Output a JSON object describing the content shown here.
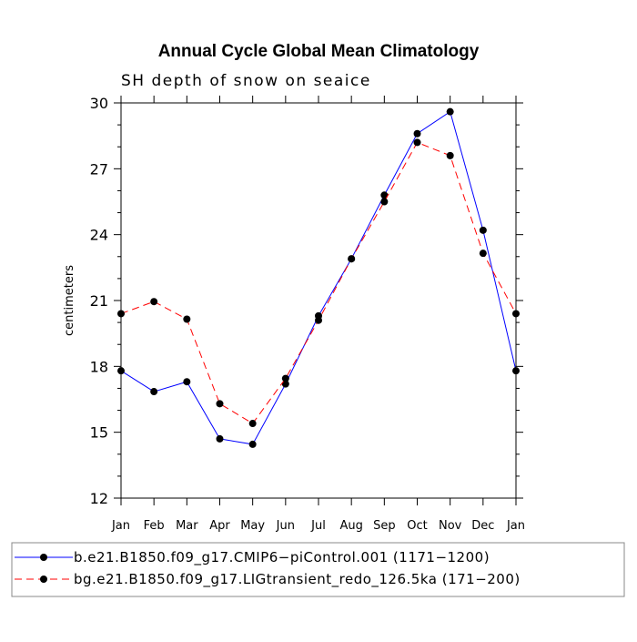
{
  "chart_data": {
    "type": "line",
    "title": "Annual Cycle Global Mean Climatology",
    "subtitle": "SH depth of snow on seaice",
    "xlabel": "",
    "ylabel": "centimeters",
    "categories": [
      "Jan",
      "Feb",
      "Mar",
      "Apr",
      "May",
      "Jun",
      "Jul",
      "Aug",
      "Sep",
      "Oct",
      "Nov",
      "Dec",
      "Jan"
    ],
    "ylim": [
      12,
      30
    ],
    "yticks": [
      12,
      15,
      18,
      21,
      24,
      27,
      30
    ],
    "yticks_labels": [
      "12",
      "15",
      "18",
      "21",
      "24",
      "27",
      "30"
    ],
    "grid": false,
    "legend_position": "bottom",
    "series": [
      {
        "name": "b.e21.B1850.f09_g17.CMIP6−piControl.001 (1171−1200)",
        "color": "#0000ff",
        "style": "solid",
        "marker": "filled-circle",
        "values": [
          17.8,
          16.85,
          17.3,
          14.7,
          14.45,
          17.2,
          20.3,
          22.9,
          25.8,
          28.6,
          29.6,
          24.2,
          17.8
        ]
      },
      {
        "name": "bg.e21.B1850.f09_g17.LIGtransient_redo_126.5ka (171−200)",
        "color": "#ff0000",
        "style": "dashed",
        "marker": "filled-circle",
        "values": [
          20.4,
          20.95,
          20.15,
          16.3,
          15.4,
          17.45,
          20.1,
          22.9,
          25.5,
          28.2,
          27.6,
          23.15,
          20.4
        ]
      }
    ]
  }
}
